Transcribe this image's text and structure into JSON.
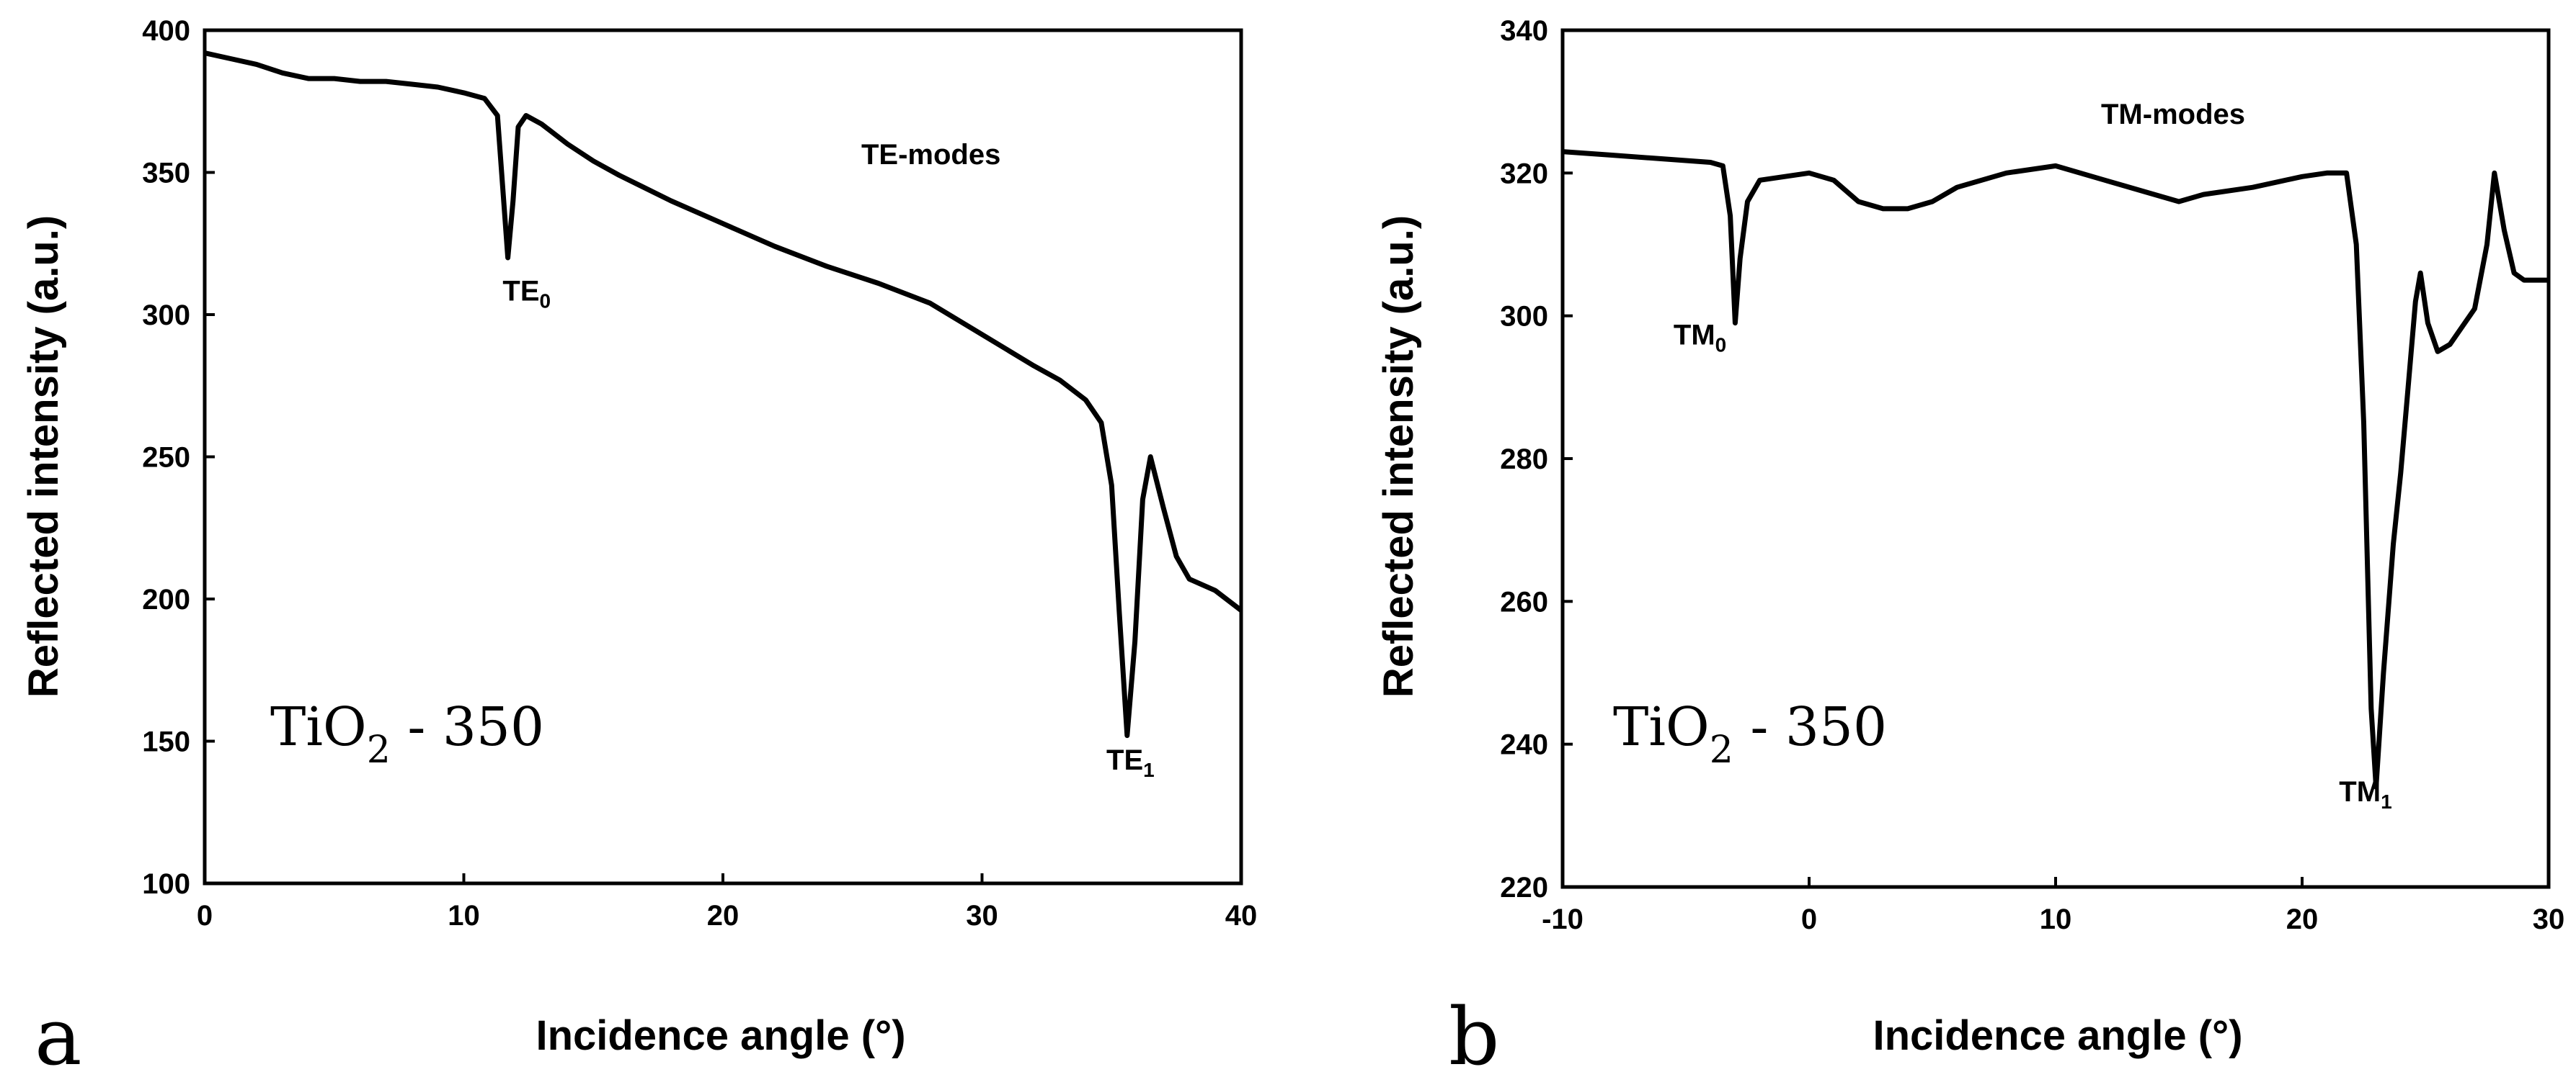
{
  "chart_data": [
    {
      "panel_letter": "a",
      "type": "line",
      "title": "",
      "xlabel": "Incidence angle (°)",
      "ylabel": "Reflected intensity (a.u.)",
      "xlim": [
        0,
        40
      ],
      "ylim": [
        100,
        400
      ],
      "xticks": [
        0,
        10,
        20,
        30,
        40
      ],
      "yticks": [
        100,
        150,
        200,
        250,
        300,
        350,
        400
      ],
      "grid": false,
      "sample_label": {
        "main": "TiO",
        "sub": "2",
        "rest": " - 350"
      },
      "mode_label": "TE-modes",
      "annotations": [
        {
          "base": "TE",
          "sub": "0",
          "x": 11.5,
          "y": 305
        },
        {
          "base": "TE",
          "sub": "1",
          "x": 34.8,
          "y": 140
        }
      ],
      "series": [
        {
          "name": "TE",
          "points": [
            [
              0,
              392
            ],
            [
              1,
              390
            ],
            [
              2,
              388
            ],
            [
              3,
              385
            ],
            [
              4,
              383
            ],
            [
              5,
              383
            ],
            [
              6,
              382
            ],
            [
              7,
              382
            ],
            [
              8,
              381
            ],
            [
              9,
              380
            ],
            [
              10,
              378
            ],
            [
              10.8,
              376
            ],
            [
              11.3,
              370
            ],
            [
              11.5,
              345
            ],
            [
              11.7,
              320
            ],
            [
              11.9,
              340
            ],
            [
              12.1,
              366
            ],
            [
              12.4,
              370
            ],
            [
              13,
              367
            ],
            [
              14,
              360
            ],
            [
              15,
              354
            ],
            [
              16,
              349
            ],
            [
              18,
              340
            ],
            [
              20,
              332
            ],
            [
              22,
              324
            ],
            [
              24,
              317
            ],
            [
              26,
              311
            ],
            [
              28,
              304
            ],
            [
              30,
              293
            ],
            [
              32,
              282
            ],
            [
              33,
              277
            ],
            [
              34,
              270
            ],
            [
              34.6,
              262
            ],
            [
              35,
              240
            ],
            [
              35.3,
              195
            ],
            [
              35.6,
              152
            ],
            [
              35.9,
              185
            ],
            [
              36.2,
              235
            ],
            [
              36.5,
              250
            ],
            [
              37,
              232
            ],
            [
              37.5,
              215
            ],
            [
              38,
              207
            ],
            [
              39,
              203
            ],
            [
              40,
              196
            ]
          ]
        }
      ]
    },
    {
      "panel_letter": "b",
      "type": "line",
      "title": "",
      "xlabel": "Incidence angle (°)",
      "ylabel": "Reflected intensity (a.u.)",
      "xlim": [
        -10,
        30
      ],
      "ylim": [
        220,
        340
      ],
      "xticks": [
        -10,
        0,
        10,
        20,
        30
      ],
      "yticks": [
        220,
        240,
        260,
        280,
        300,
        320,
        340
      ],
      "grid": false,
      "sample_label": {
        "main": "TiO",
        "sub": "2",
        "rest": " - 350"
      },
      "mode_label": "TM-modes",
      "annotations": [
        {
          "base": "TM",
          "sub": "0",
          "x": -5.5,
          "y": 296
        },
        {
          "base": "TM",
          "sub": "1",
          "x": 21.5,
          "y": 232
        }
      ],
      "series": [
        {
          "name": "TM",
          "points": [
            [
              -10,
              323
            ],
            [
              -8,
              322.5
            ],
            [
              -6,
              322
            ],
            [
              -4,
              321.5
            ],
            [
              -3.5,
              321
            ],
            [
              -3.2,
              314
            ],
            [
              -3,
              299
            ],
            [
              -2.8,
              308
            ],
            [
              -2.5,
              316
            ],
            [
              -2,
              319
            ],
            [
              0,
              320
            ],
            [
              1,
              319
            ],
            [
              2,
              316
            ],
            [
              3,
              315
            ],
            [
              4,
              315
            ],
            [
              5,
              316
            ],
            [
              6,
              318
            ],
            [
              8,
              320
            ],
            [
              10,
              321
            ],
            [
              12,
              319
            ],
            [
              14,
              317
            ],
            [
              15,
              316
            ],
            [
              16,
              317
            ],
            [
              18,
              318
            ],
            [
              20,
              319.5
            ],
            [
              21,
              320
            ],
            [
              21.8,
              320
            ],
            [
              22.2,
              310
            ],
            [
              22.5,
              285
            ],
            [
              22.8,
              245
            ],
            [
              23,
              234
            ],
            [
              23.3,
              250
            ],
            [
              23.7,
              268
            ],
            [
              24,
              278
            ],
            [
              24.3,
              290
            ],
            [
              24.6,
              302
            ],
            [
              24.8,
              306
            ],
            [
              25.1,
              299
            ],
            [
              25.5,
              295
            ],
            [
              26,
              296
            ],
            [
              27,
              301
            ],
            [
              27.5,
              310
            ],
            [
              27.8,
              320
            ],
            [
              28.2,
              312
            ],
            [
              28.6,
              306
            ],
            [
              29,
              305
            ],
            [
              30,
              305
            ]
          ]
        }
      ]
    }
  ]
}
